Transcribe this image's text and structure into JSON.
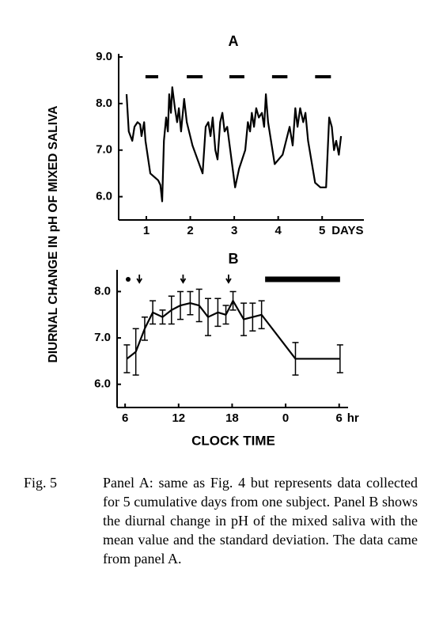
{
  "chart_data": [
    {
      "type": "line",
      "title": "A",
      "ylabel": "DIURNAL CHANGE IN pH OF MIXED SALIVA",
      "xlabel": "DAYS",
      "x": [
        0.55,
        0.6,
        0.68,
        0.73,
        0.8,
        0.86,
        0.89,
        0.95,
        0.98,
        1.09,
        1.27,
        1.32,
        1.36,
        1.4,
        1.45,
        1.49,
        1.52,
        1.56,
        1.59,
        1.65,
        1.7,
        1.74,
        1.79,
        1.86,
        1.92,
        2.05,
        2.28,
        2.35,
        2.41,
        2.46,
        2.51,
        2.57,
        2.62,
        2.68,
        2.73,
        2.78,
        2.84,
        3.02,
        3.11,
        3.25,
        3.31,
        3.36,
        3.4,
        3.45,
        3.5,
        3.56,
        3.63,
        3.68,
        3.72,
        3.77,
        3.92,
        4.1,
        4.26,
        4.33,
        4.39,
        4.44,
        4.5,
        4.57,
        4.62,
        4.68,
        4.84,
        4.96,
        5.09,
        5.16,
        5.22,
        5.27,
        5.32,
        5.38,
        5.43
      ],
      "values": [
        8.2,
        7.4,
        7.2,
        7.5,
        7.6,
        7.55,
        7.3,
        7.6,
        7.2,
        6.5,
        6.35,
        6.25,
        5.9,
        7.2,
        7.7,
        7.4,
        8.2,
        7.8,
        8.35,
        7.9,
        7.6,
        7.9,
        7.4,
        8.1,
        7.6,
        7.1,
        6.5,
        7.5,
        7.6,
        7.3,
        7.7,
        7.0,
        6.8,
        7.6,
        7.8,
        7.4,
        7.5,
        6.2,
        6.6,
        7.0,
        7.6,
        7.4,
        7.8,
        7.5,
        7.9,
        7.7,
        7.8,
        7.5,
        8.2,
        7.6,
        6.7,
        6.9,
        7.5,
        7.1,
        7.9,
        7.5,
        7.9,
        7.6,
        7.8,
        7.2,
        6.3,
        6.2,
        6.2,
        7.7,
        7.5,
        7.0,
        7.2,
        6.9,
        7.3
      ],
      "dark_periods": [
        [
          0.98,
          1.27
        ],
        [
          1.92,
          2.28
        ],
        [
          2.89,
          3.23
        ],
        [
          3.86,
          4.21
        ],
        [
          4.84,
          5.2
        ]
      ],
      "xlim": [
        0.37,
        5.95
      ],
      "ylim": [
        5.5,
        9.0
      ],
      "xticks": [
        1,
        2,
        3,
        4,
        5
      ],
      "yticks": [
        {
          "value": 6,
          "label": "6.0"
        },
        {
          "value": 7,
          "label": "7.0"
        },
        {
          "value": 8,
          "label": "8.0"
        },
        {
          "value": 9,
          "label": "9.0"
        }
      ],
      "color": "#000000"
    },
    {
      "type": "line",
      "title": "B",
      "xlabel": "CLOCK TIME",
      "x_unit": "hr",
      "x": [
        6.2,
        7.2,
        8.2,
        9.1,
        10.2,
        11.2,
        12.2,
        13.3,
        14.3,
        15.3,
        16.4,
        17.3,
        18.1,
        19.3,
        20.3,
        21.3,
        25.1,
        30.1
      ],
      "values": [
        6.55,
        6.7,
        7.2,
        7.55,
        7.45,
        7.6,
        7.7,
        7.75,
        7.7,
        7.45,
        7.55,
        7.5,
        7.8,
        7.4,
        7.45,
        7.5,
        6.55,
        6.55
      ],
      "errors": [
        0.3,
        0.5,
        0.25,
        0.25,
        0.15,
        0.3,
        0.3,
        0.25,
        0.35,
        0.4,
        0.3,
        0.2,
        0.2,
        0.35,
        0.3,
        0.3,
        0.35,
        0.3
      ],
      "dark_periods": [
        [
          21.7,
          30.1
        ]
      ],
      "arrows": [
        7.6,
        12.5,
        17.6
      ],
      "xlim": [
        5.1,
        31
      ],
      "ylim": [
        5.5,
        8.4
      ],
      "xticks": [
        6,
        12,
        18,
        {
          "value": 24,
          "label": "0"
        },
        {
          "value": 30,
          "label": "6"
        }
      ],
      "yticks": [
        {
          "value": 6,
          "label": "6.0"
        },
        {
          "value": 7,
          "label": "7.0"
        },
        {
          "value": 8,
          "label": "8.0"
        }
      ],
      "color": "#000000"
    }
  ],
  "caption": {
    "label": "Fig. 5",
    "text": "Panel A: same as Fig. 4 but represents data collected for 5 cumulative days from one subject. Panel B shows the diurnal change in pH of the mixed saliva with the mean value and the standard deviation. The data came from panel A."
  }
}
